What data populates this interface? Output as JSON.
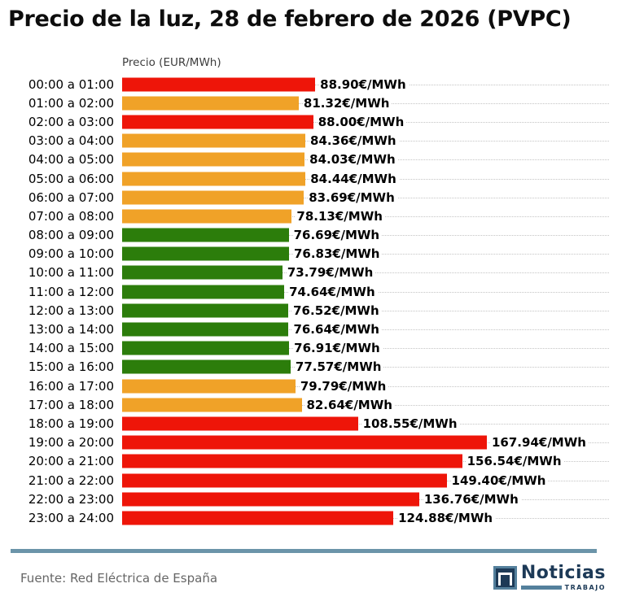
{
  "chart_data": {
    "type": "bar",
    "orientation": "horizontal",
    "title": "Precio de la luz, 28 de febrero de 2026 (PVPC)",
    "axis_label": "Precio (EUR/MWh)",
    "unit_suffix": "€/MWh",
    "xlim": [
      0,
      167.94
    ],
    "grid": "dotted-horizontal",
    "categories": [
      "00:00 a 01:00",
      "01:00 a 02:00",
      "02:00 a 03:00",
      "03:00 a 04:00",
      "04:00 a 05:00",
      "05:00 a 06:00",
      "06:00 a 07:00",
      "07:00 a 08:00",
      "08:00 a 09:00",
      "09:00 a 10:00",
      "10:00 a 11:00",
      "11:00 a 12:00",
      "12:00 a 13:00",
      "13:00 a 14:00",
      "14:00 a 15:00",
      "15:00 a 16:00",
      "16:00 a 17:00",
      "17:00 a 18:00",
      "18:00 a 19:00",
      "19:00 a 20:00",
      "20:00 a 21:00",
      "21:00 a 22:00",
      "22:00 a 23:00",
      "23:00 a 24:00"
    ],
    "values": [
      88.9,
      81.32,
      88.0,
      84.36,
      84.03,
      84.44,
      83.69,
      78.13,
      76.69,
      76.83,
      73.79,
      74.64,
      76.52,
      76.64,
      76.91,
      77.57,
      79.79,
      82.64,
      108.55,
      167.94,
      156.54,
      149.4,
      136.76,
      124.88
    ],
    "bar_colors": [
      "red",
      "orange",
      "red",
      "orange",
      "orange",
      "orange",
      "orange",
      "orange",
      "green",
      "green",
      "green",
      "green",
      "green",
      "green",
      "green",
      "green",
      "orange",
      "orange",
      "red",
      "red",
      "red",
      "red",
      "red",
      "red"
    ],
    "color_map": {
      "red": "#ee1509",
      "orange": "#f0a228",
      "green": "#2c7d0b"
    }
  },
  "footer": {
    "source": "Fuente: Red Eléctrica de España",
    "logo": {
      "name": "Noticias",
      "subtitle": "TRABAJO",
      "navy": "#1d3a57",
      "steel": "#54809c"
    }
  }
}
